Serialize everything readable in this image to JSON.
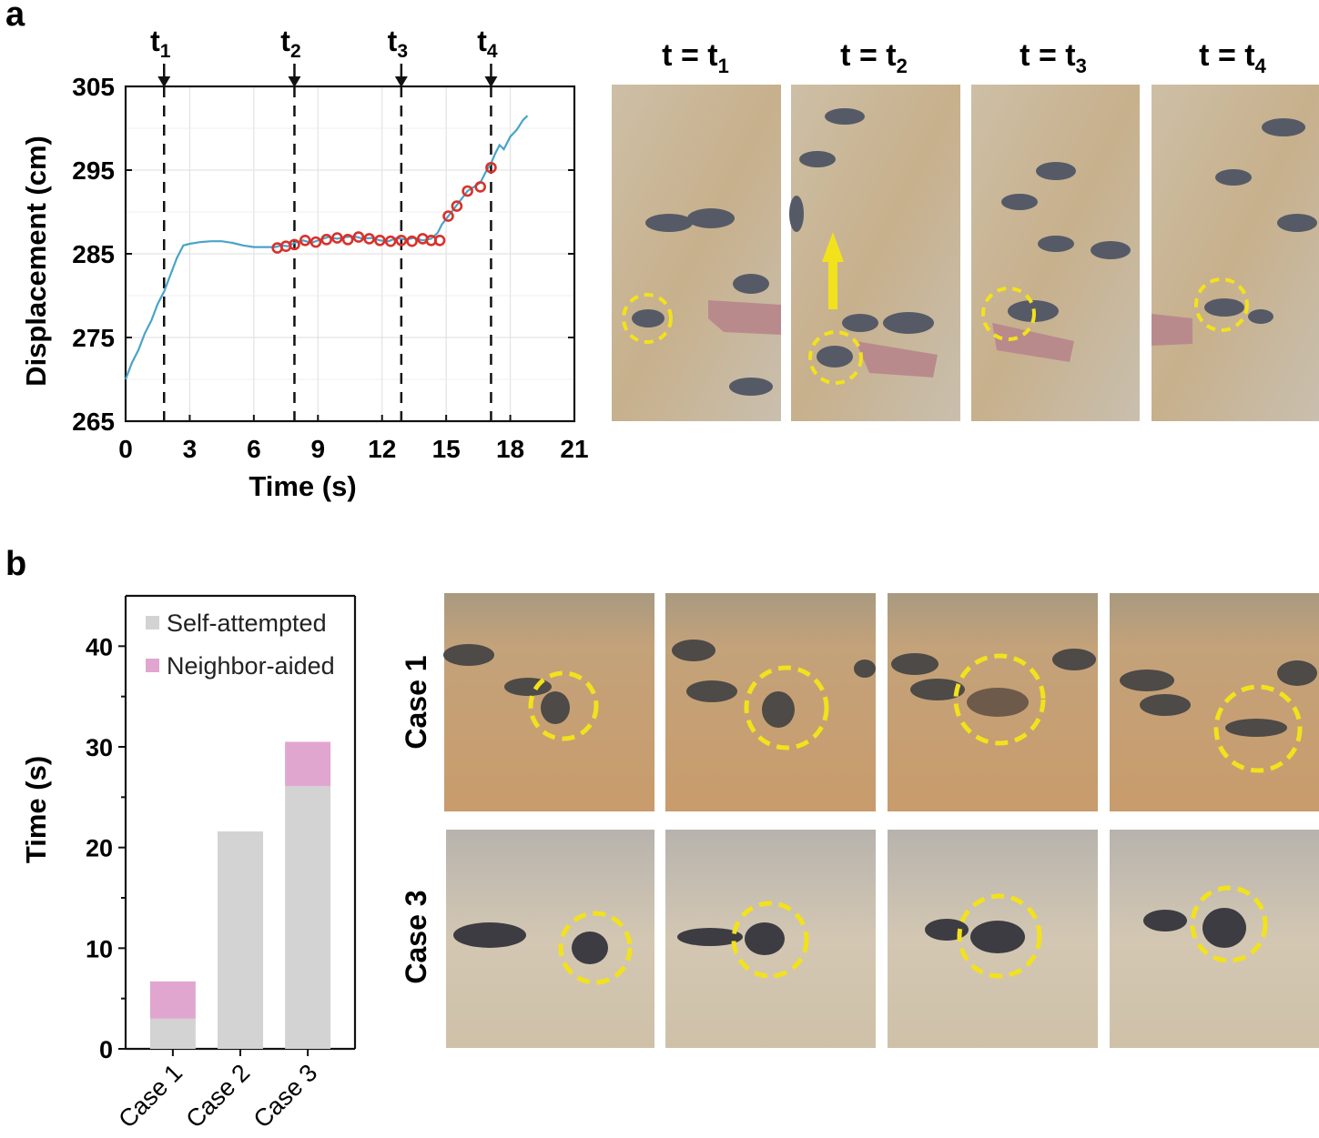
{
  "panel_a": {
    "label": "a",
    "frame_titles": [
      "t = t",
      "t = t",
      "t = t",
      "t = t"
    ],
    "frame_subs": [
      "1",
      "2",
      "3",
      "4"
    ]
  },
  "panel_b": {
    "label": "b",
    "row_labels": [
      "Case 1",
      "Case 3"
    ]
  },
  "colors": {
    "line": "#4aa3c8",
    "markers": "#d9312b",
    "self": "#d3d3d3",
    "neighbor": "#e1a6cf",
    "highlight": "#f2e21c",
    "sand": "#c9b79a"
  },
  "chart_data": [
    {
      "type": "line",
      "title": "",
      "xlabel": "Time (s)",
      "ylabel": "Displacement (cm)",
      "xlim": [
        0,
        21
      ],
      "ylim": [
        265,
        305
      ],
      "xticks": [
        0,
        3,
        6,
        9,
        12,
        15,
        18,
        21
      ],
      "yticks": [
        265,
        275,
        285,
        295,
        305
      ],
      "grid": true,
      "event_lines": [
        {
          "label": "t",
          "sub": "1",
          "x": 1.8
        },
        {
          "label": "t",
          "sub": "2",
          "x": 7.9
        },
        {
          "label": "t",
          "sub": "3",
          "x": 12.9
        },
        {
          "label": "t",
          "sub": "4",
          "x": 17.1
        }
      ],
      "series": [
        {
          "name": "displacement",
          "x": [
            0,
            0.3,
            0.6,
            0.9,
            1.2,
            1.5,
            1.8,
            2.1,
            2.4,
            2.7,
            3.0,
            3.5,
            4.0,
            4.5,
            5.0,
            5.5,
            6.0,
            6.5,
            7.0,
            7.3,
            7.6,
            7.9,
            8.3,
            8.7,
            9.1,
            9.5,
            9.9,
            10.3,
            10.7,
            11.1,
            11.5,
            11.9,
            12.3,
            12.7,
            13.1,
            13.5,
            13.9,
            14.3,
            14.6,
            14.8,
            15.1,
            15.4,
            15.7,
            16.0,
            16.3,
            16.6,
            16.9,
            17.1,
            17.3,
            17.5,
            17.7,
            18.0,
            18.3,
            18.6,
            18.8
          ],
          "y": [
            270,
            272,
            273.5,
            275.5,
            277,
            279,
            280.5,
            282.5,
            284.5,
            286,
            286.2,
            286.4,
            286.5,
            286.5,
            286.3,
            286,
            285.8,
            285.8,
            285.8,
            286,
            285.9,
            286.3,
            286.6,
            286.3,
            286.7,
            287,
            286.8,
            287,
            287.1,
            286.8,
            286.9,
            286.6,
            286.5,
            286.9,
            286.7,
            286.9,
            286.6,
            286.8,
            287.5,
            288.5,
            289.5,
            290.5,
            291.5,
            292.5,
            293,
            293.5,
            295,
            295.8,
            297,
            298,
            297.5,
            299,
            299.8,
            301,
            301.5
          ]
        },
        {
          "name": "tracked points",
          "x": [
            7.1,
            7.5,
            7.9,
            8.4,
            8.9,
            9.4,
            9.9,
            10.4,
            10.9,
            11.4,
            11.9,
            12.4,
            12.9,
            13.4,
            13.9,
            14.3,
            14.7,
            15.1,
            15.5,
            16.0,
            16.6,
            17.1
          ],
          "y": [
            285.7,
            285.9,
            286.1,
            286.6,
            286.4,
            286.7,
            286.9,
            286.7,
            287.0,
            286.8,
            286.6,
            286.5,
            286.6,
            286.5,
            286.8,
            286.6,
            286.6,
            289.5,
            290.7,
            292.5,
            293.0,
            295.3
          ]
        }
      ]
    },
    {
      "type": "bar",
      "stacked": true,
      "title": "",
      "xlabel": "",
      "ylabel": "Time (s)",
      "ylim": [
        0,
        45
      ],
      "yticks": [
        0,
        10,
        20,
        30,
        40
      ],
      "categories": [
        "Case 1",
        "Case 2",
        "Case 3"
      ],
      "series": [
        {
          "name": "Self-attempted",
          "values": [
            3.0,
            21.6,
            26.1
          ]
        },
        {
          "name": "Neighbor-aided",
          "values": [
            3.7,
            0,
            4.4
          ]
        }
      ],
      "legend_position": "top-left"
    }
  ]
}
